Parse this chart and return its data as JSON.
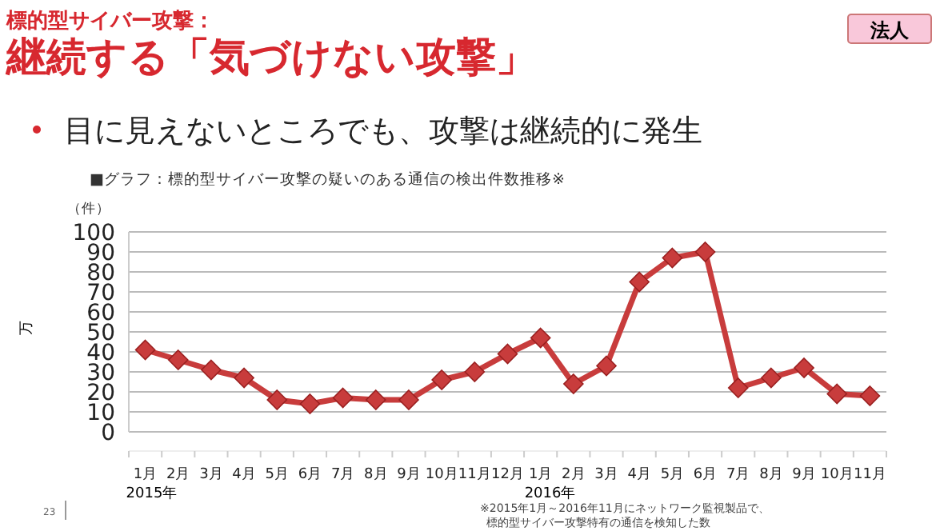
{
  "chart_data": {
    "type": "line",
    "title": "継続する「気づけない攻撃」",
    "subtitle": "目に見えないところでも、攻撃は継続的に発生",
    "ylabel": "万",
    "annotations": [
      "標的型サイバー攻撃：",
      "法人",
      "■グラフ：標的型サイバー攻撃の疑いのある通信の検出件数推移※",
      "（件）",
      "2015年",
      "2016年",
      "※2015年1月～2016年11月にネットワーク監視製品で、",
      "標的型サイバー攻撃特有の通信を検知した数",
      "23"
    ],
    "categories": [
      "1月",
      "2月",
      "3月",
      "4月",
      "5月",
      "6月",
      "7月",
      "8月",
      "9月",
      "10月",
      "11月",
      "12月",
      "1月",
      "2月",
      "3月",
      "4月",
      "5月",
      "6月",
      "7月",
      "8月",
      "9月",
      "10月",
      "11月"
    ],
    "series": [
      {
        "color": "#c83c3c",
        "values": [
          41,
          36,
          31,
          27,
          16,
          14,
          17,
          16,
          16,
          26,
          30,
          39,
          47,
          24,
          33,
          75,
          87,
          90,
          22,
          27,
          32,
          19,
          18
        ]
      }
    ],
    "ylim": [
      0,
      100
    ],
    "yticks": [
      0,
      10,
      20,
      30,
      40,
      50,
      60,
      70,
      80,
      90,
      100
    ],
    "grid": "y",
    "marker": "diamond",
    "line_style": "solid"
  }
}
